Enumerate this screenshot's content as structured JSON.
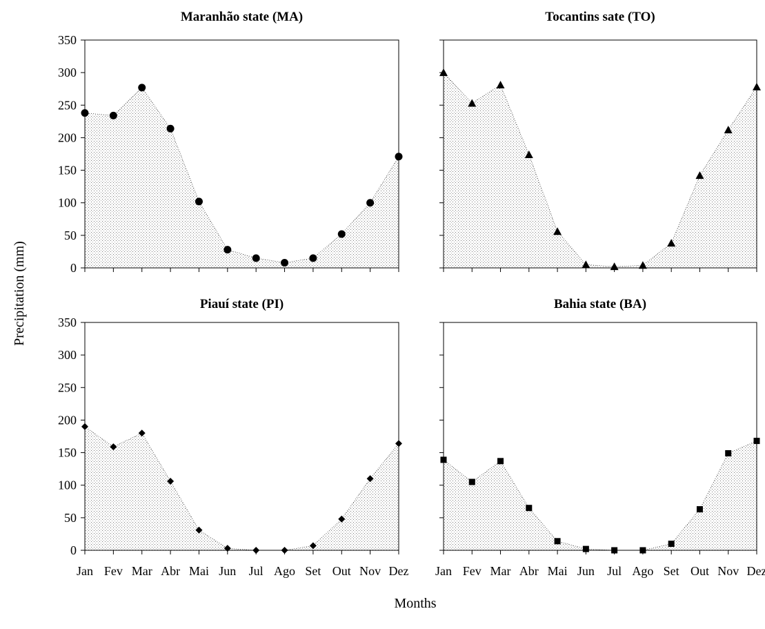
{
  "figure": {
    "ylabel": "Precipitation (mm)",
    "xlabel": "Months"
  },
  "chart_data": [
    {
      "type": "area",
      "title": "Maranhão state (MA)",
      "marker": "circle",
      "categories": [
        "Jan",
        "Fev",
        "Mar",
        "Abr",
        "Mai",
        "Jun",
        "Jul",
        "Ago",
        "Set",
        "Out",
        "Nov",
        "Dez"
      ],
      "values": [
        238,
        234,
        277,
        214,
        102,
        28,
        15,
        8,
        15,
        52,
        100,
        171
      ],
      "ylim": [
        0,
        350
      ],
      "yticks": [
        0,
        50,
        100,
        150,
        200,
        250,
        300,
        350
      ],
      "grid": false
    },
    {
      "type": "area",
      "title": "Tocantins  sate (TO)",
      "marker": "triangle",
      "categories": [
        "Jan",
        "Fev",
        "Mar",
        "Abr",
        "Mai",
        "Jun",
        "Jul",
        "Ago",
        "Set",
        "Out",
        "Nov",
        "Dez"
      ],
      "values": [
        300,
        253,
        281,
        174,
        56,
        5,
        2,
        4,
        38,
        142,
        212,
        278
      ],
      "ylim": [
        0,
        350
      ],
      "yticks": [
        0,
        50,
        100,
        150,
        200,
        250,
        300,
        350
      ],
      "grid": false
    },
    {
      "type": "area",
      "title": "Piauí state (PI)",
      "marker": "diamond",
      "categories": [
        "Jan",
        "Fev",
        "Mar",
        "Abr",
        "Mai",
        "Jun",
        "Jul",
        "Ago",
        "Set",
        "Out",
        "Nov",
        "Dez"
      ],
      "values": [
        190,
        159,
        180,
        106,
        31,
        3,
        0,
        0,
        7,
        48,
        110,
        164
      ],
      "ylim": [
        0,
        350
      ],
      "yticks": [
        0,
        50,
        100,
        150,
        200,
        250,
        300,
        350
      ],
      "grid": false
    },
    {
      "type": "area",
      "title": "Bahia state (BA)",
      "marker": "square",
      "categories": [
        "Jan",
        "Fev",
        "Mar",
        "Abr",
        "Mai",
        "Jun",
        "Jul",
        "Ago",
        "Set",
        "Out",
        "Nov",
        "Dez"
      ],
      "values": [
        139,
        105,
        137,
        65,
        14,
        2,
        0,
        0,
        10,
        63,
        149,
        168
      ],
      "ylim": [
        0,
        350
      ],
      "yticks": [
        0,
        50,
        100,
        150,
        200,
        250,
        300,
        350
      ],
      "grid": false
    }
  ]
}
